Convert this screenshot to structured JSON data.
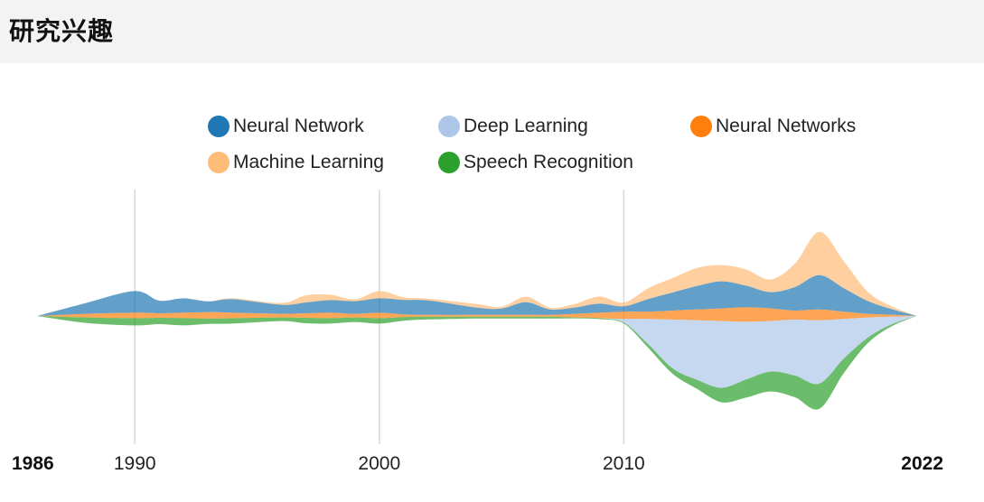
{
  "header": {
    "title": "研究兴趣"
  },
  "chart_data": {
    "type": "area",
    "subtype": "streamgraph",
    "xlim": [
      1986,
      2022
    ],
    "grid": "vertical lines at 1990, 2000, 2010",
    "legend_position": "top",
    "x": [
      1986,
      1988,
      1990,
      1991,
      1992,
      1993,
      1994,
      1996,
      1997,
      1998,
      1999,
      2000,
      2001,
      2002,
      2004,
      2005,
      2006,
      2007,
      2008,
      2009,
      2010,
      2011,
      2012,
      2013,
      2014,
      2015,
      2016,
      2017,
      2018,
      2019,
      2020,
      2021,
      2022
    ],
    "series": [
      {
        "name": "Neural Network",
        "color": "#1f77b4",
        "values": [
          0,
          12,
          24,
          14,
          16,
          12,
          15,
          10,
          12,
          14,
          14,
          16,
          16,
          16,
          8,
          7,
          14,
          6,
          7,
          10,
          6,
          14,
          20,
          26,
          30,
          24,
          18,
          26,
          38,
          26,
          14,
          6,
          0
        ]
      },
      {
        "name": "Deep Learning",
        "color": "#aec7e8",
        "values": [
          0,
          0,
          0,
          0,
          0,
          0,
          0,
          0,
          0,
          0,
          0,
          0,
          0,
          0,
          0,
          0,
          0,
          0,
          0,
          0,
          4,
          28,
          54,
          66,
          74,
          64,
          56,
          62,
          70,
          44,
          22,
          8,
          0
        ]
      },
      {
        "name": "Neural Networks",
        "color": "#ff7f0e",
        "values": [
          0,
          4,
          6,
          5,
          6,
          7,
          6,
          4,
          5,
          6,
          4,
          6,
          3,
          2,
          2,
          2,
          2,
          2,
          4,
          6,
          8,
          8,
          10,
          12,
          14,
          16,
          14,
          10,
          12,
          8,
          4,
          2,
          0
        ]
      },
      {
        "name": "Machine Learning",
        "color": "#ffbb78",
        "values": [
          0,
          0,
          0,
          0,
          0,
          0,
          1,
          2,
          8,
          6,
          2,
          8,
          3,
          2,
          4,
          2,
          6,
          2,
          4,
          8,
          4,
          12,
          16,
          20,
          18,
          18,
          14,
          26,
          48,
          30,
          10,
          3,
          0
        ]
      },
      {
        "name": "Speech Recognition",
        "color": "#2ca02c",
        "values": [
          0,
          6,
          8,
          7,
          8,
          6,
          6,
          4,
          6,
          6,
          5,
          6,
          4,
          3,
          2,
          2,
          2,
          2,
          1,
          1,
          1,
          4,
          6,
          10,
          16,
          20,
          22,
          24,
          28,
          16,
          6,
          2,
          0
        ]
      }
    ],
    "x_tick_labels": [
      "1986",
      "1990",
      "2000",
      "2010",
      "2022"
    ]
  }
}
